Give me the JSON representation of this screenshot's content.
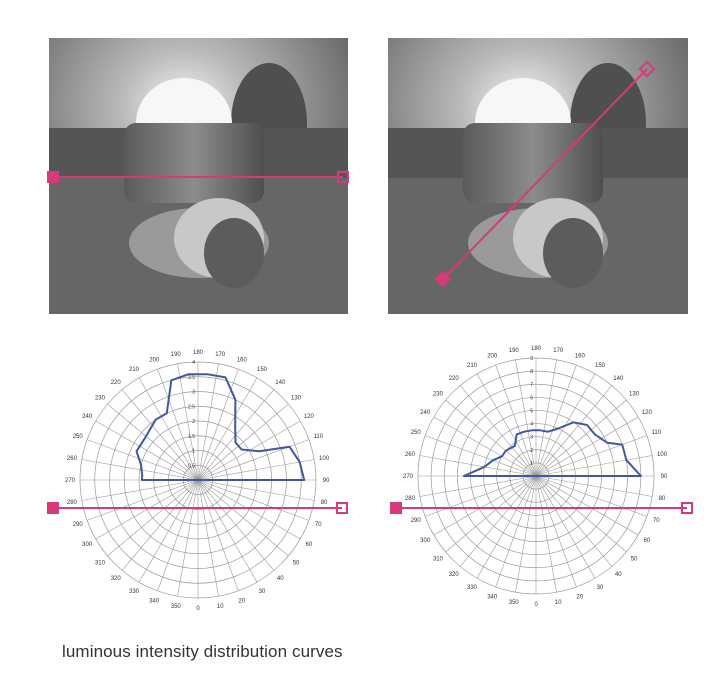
{
  "caption": "luminous intensity distribution curves",
  "colors": {
    "accent": "#d63a7a",
    "curve": "#3f58a0",
    "grid": "#9a9a9a",
    "photo_bg": "#6b6b6b"
  },
  "chart_data": [
    {
      "type": "polar-line",
      "angle_labels": [
        "0",
        "10",
        "20",
        "30",
        "40",
        "50",
        "60",
        "70",
        "80",
        "90",
        "100",
        "110",
        "120",
        "130",
        "140",
        "150",
        "160",
        "170",
        "180",
        "190",
        "200",
        "210",
        "220",
        "230",
        "240",
        "250",
        "260",
        "270",
        "280",
        "290",
        "300",
        "310",
        "320",
        "330",
        "340",
        "350"
      ],
      "radial_labels": [
        "0.5",
        "1",
        "1.5",
        "2",
        "2.5",
        "3",
        "3.5",
        "4"
      ],
      "rmax": 4,
      "series": [
        {
          "points": [
            [
              90,
              3.6
            ],
            [
              100,
              3.5
            ],
            [
              110,
              3.3
            ],
            [
              115,
              2.3
            ],
            [
              125,
              1.8
            ],
            [
              135,
              1.8
            ],
            [
              145,
              2.2
            ],
            [
              155,
              3.0
            ],
            [
              165,
              3.6
            ],
            [
              175,
              3.6
            ],
            [
              185,
              3.6
            ],
            [
              195,
              3.5
            ],
            [
              205,
              2.5
            ],
            [
              215,
              2.5
            ],
            [
              230,
              2.3
            ],
            [
              245,
              2.3
            ],
            [
              255,
              2.0
            ],
            [
              265,
              1.9
            ],
            [
              270,
              1.9
            ]
          ]
        }
      ]
    },
    {
      "type": "polar-line",
      "angle_labels": [
        "0",
        "10",
        "20",
        "30",
        "40",
        "50",
        "60",
        "70",
        "80",
        "90",
        "100",
        "110",
        "120",
        "130",
        "140",
        "150",
        "160",
        "170",
        "180",
        "190",
        "200",
        "210",
        "220",
        "230",
        "240",
        "250",
        "260",
        "270",
        "280",
        "290",
        "300",
        "310",
        "320",
        "330",
        "340",
        "350"
      ],
      "radial_labels": [
        "1",
        "2",
        "3",
        "4",
        "5",
        "6",
        "7",
        "8",
        "9"
      ],
      "rmax": 9,
      "series": [
        {
          "points": [
            [
              90,
              8.0
            ],
            [
              100,
              7.0
            ],
            [
              110,
              7.0
            ],
            [
              115,
              6.0
            ],
            [
              125,
              5.5
            ],
            [
              135,
              5.5
            ],
            [
              145,
              5.0
            ],
            [
              155,
              4.0
            ],
            [
              165,
              3.5
            ],
            [
              175,
              3.5
            ],
            [
              185,
              3.5
            ],
            [
              195,
              3.5
            ],
            [
              205,
              3.5
            ],
            [
              215,
              2.8
            ],
            [
              230,
              3.0
            ],
            [
              240,
              3.0
            ],
            [
              250,
              3.5
            ],
            [
              260,
              4.0
            ],
            [
              270,
              5.5
            ]
          ]
        }
      ]
    }
  ]
}
